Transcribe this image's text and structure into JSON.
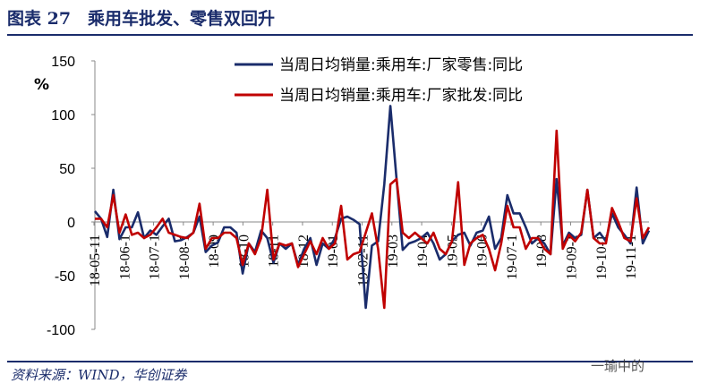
{
  "figure": {
    "title": "图表 27　乘用车批发、零售双回升",
    "source": "资料来源：WIND，华创证券",
    "watermark": "一瑜中的"
  },
  "chart_data": {
    "type": "line",
    "ylabel": "%",
    "ylim": [
      -100,
      150
    ],
    "yticks": [
      -100,
      -50,
      0,
      50,
      100,
      150
    ],
    "x_tick_labels": [
      "18-05-11",
      "18-06-1",
      "18-07-1",
      "18-08-1",
      "18-09",
      "18-10",
      "18-11",
      "18-12",
      "19-01",
      "19-02-11",
      "19-03",
      "19-04",
      "19-05",
      "19-06",
      "19-07-1",
      "19-08",
      "19-09-1",
      "19-10-1",
      "19-11-1"
    ],
    "legend_position": "top",
    "grid": false,
    "series": [
      {
        "name": "当周日均销量:乘用车:厂家零售:同比",
        "color": "#1a2c6b",
        "values": [
          10,
          3,
          -14,
          30,
          -16,
          -5,
          -5,
          9,
          -15,
          -8,
          -12,
          -4,
          3,
          -18,
          -17,
          -14,
          -10,
          5,
          -28,
          -22,
          -19,
          -5,
          -5,
          -10,
          -48,
          -20,
          -28,
          -8,
          -15,
          -38,
          -20,
          -25,
          -20,
          -40,
          -25,
          -15,
          -40,
          -20,
          -25,
          -15,
          3,
          5,
          2,
          -2,
          -80,
          -22,
          -18,
          35,
          108,
          40,
          -26,
          -20,
          -18,
          -15,
          -10,
          -20,
          -35,
          -30,
          -18,
          -12,
          -10,
          -22,
          -10,
          -8,
          5,
          -25,
          -15,
          25,
          8,
          8,
          -5,
          -20,
          -15,
          -20,
          -30,
          40,
          -22,
          -10,
          -15,
          -12,
          30,
          -15,
          -10,
          -18,
          8,
          -5,
          -12,
          -20,
          32,
          -20,
          -8
        ]
      },
      {
        "name": "当周日均销量:乘用车:厂家批发:同比",
        "color": "#c00000",
        "values": [
          3,
          3,
          -5,
          25,
          -10,
          7,
          -12,
          -10,
          -15,
          -12,
          -5,
          3,
          -10,
          -12,
          -14,
          -15,
          -10,
          17,
          -25,
          -15,
          -15,
          -10,
          -10,
          -15,
          -40,
          -20,
          -30,
          -15,
          30,
          -35,
          -20,
          -22,
          -20,
          -42,
          -30,
          -18,
          -30,
          -15,
          -25,
          -20,
          15,
          -35,
          -30,
          -28,
          -10,
          8,
          -25,
          -80,
          35,
          40,
          -10,
          -15,
          -10,
          -15,
          -20,
          -10,
          -25,
          -30,
          -18,
          37,
          -40,
          -20,
          -15,
          -12,
          -25,
          -45,
          -20,
          15,
          -5,
          -5,
          -25,
          -15,
          -15,
          -25,
          -30,
          85,
          -25,
          -12,
          -18,
          -10,
          30,
          -15,
          -20,
          -20,
          13,
          0,
          -15,
          -18,
          22,
          -15,
          -5
        ]
      }
    ]
  }
}
